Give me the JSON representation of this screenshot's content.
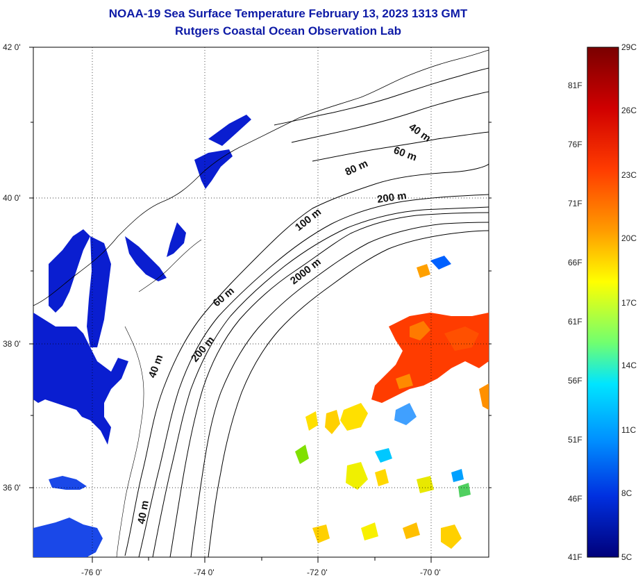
{
  "header": {
    "title": "NOAA-19 Sea Surface Temperature February 13, 2023 1313 GMT",
    "subtitle": "Rutgers Coastal Ocean Observation Lab"
  },
  "map": {
    "lat_labels": [
      "42 0'",
      "40 0'",
      "38 0'",
      "36 0'"
    ],
    "lon_labels": [
      "-76 0'",
      "-74 0'",
      "-72 0'",
      "-70 0'"
    ],
    "depth_labels": [
      "40 m",
      "60 m",
      "80 m",
      "200 m",
      "100 m",
      "2000 m",
      "60 m",
      "200 m",
      "40 m",
      "40 m"
    ]
  },
  "colorbar": {
    "fahrenheit_labels": [
      "81F",
      "76F",
      "71F",
      "66F",
      "61F",
      "56F",
      "51F",
      "46F",
      "41F"
    ],
    "celsius_labels": [
      "29C",
      "26C",
      "23C",
      "20C",
      "17C",
      "14C",
      "11C",
      "8C",
      "5C"
    ],
    "colors": [
      "#7a0000",
      "#e00000",
      "#ff5a00",
      "#ffb000",
      "#ffff00",
      "#70ff70",
      "#00e5ff",
      "#0070ff",
      "#0000d0",
      "#00007a"
    ]
  }
}
